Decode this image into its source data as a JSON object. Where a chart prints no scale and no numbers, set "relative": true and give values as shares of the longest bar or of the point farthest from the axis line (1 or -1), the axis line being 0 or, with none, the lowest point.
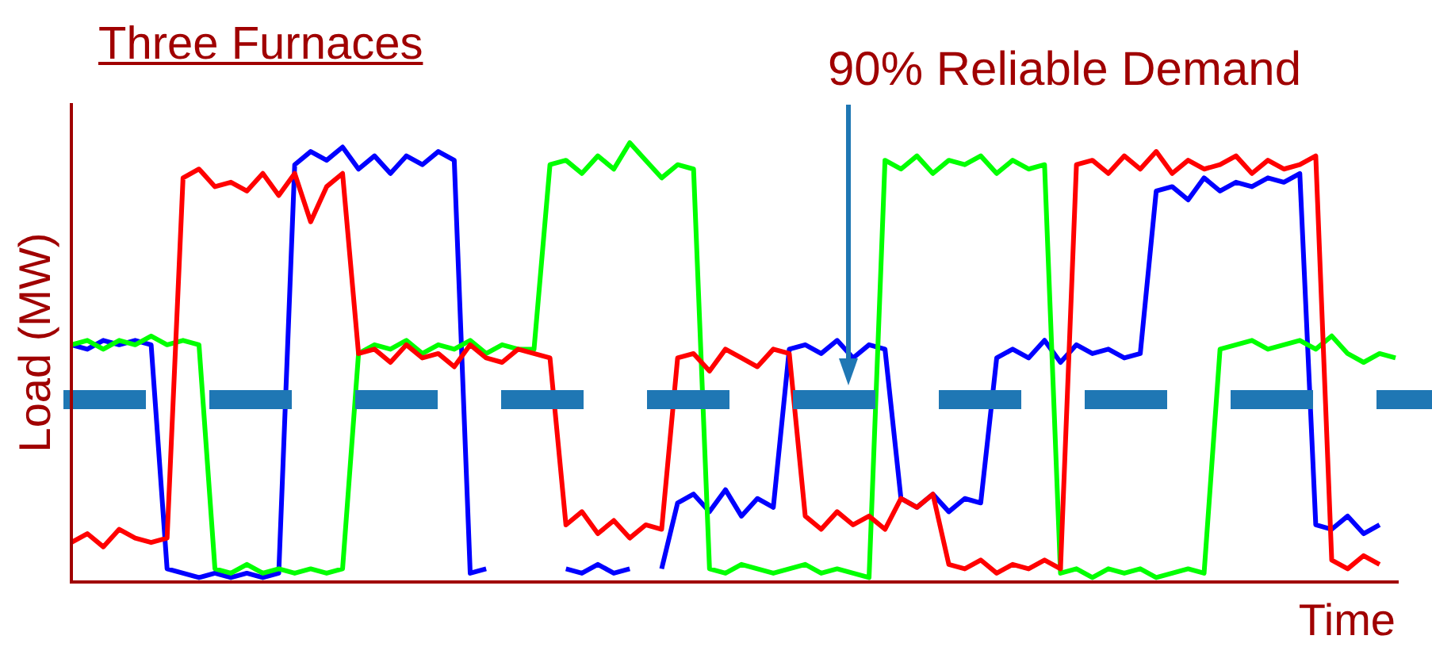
{
  "chart_data": {
    "type": "line",
    "title": "Three Furnaces",
    "xlabel": "Time",
    "ylabel": "Load (MW)",
    "relative": true,
    "categories": [
      null,
      null,
      null,
      null,
      null,
      null,
      null,
      null,
      null,
      null,
      null,
      null,
      null,
      null,
      null,
      null,
      null,
      null,
      null,
      null,
      null,
      null,
      null,
      null,
      null,
      null,
      null,
      null,
      null,
      null,
      null,
      null,
      null,
      null,
      null,
      null,
      null,
      null,
      null,
      null,
      null,
      null,
      null,
      null,
      null,
      null,
      null,
      null,
      null,
      null,
      null,
      null,
      null,
      null,
      null,
      null,
      null,
      null,
      null,
      null,
      null,
      null,
      null,
      null,
      null,
      null,
      null,
      null,
      null,
      null,
      null,
      null,
      null,
      null,
      null,
      null,
      null,
      null,
      null,
      null,
      null,
      null,
      null,
      null
    ],
    "series": [
      {
        "color": "#ff0000",
        "values": [
          0.09,
          0.11,
          0.08,
          0.12,
          0.1,
          0.09,
          0.1,
          0.92,
          0.94,
          0.9,
          0.91,
          0.89,
          0.93,
          0.88,
          0.93,
          0.82,
          0.9,
          0.93,
          0.52,
          0.53,
          0.5,
          0.54,
          0.51,
          0.52,
          0.49,
          0.54,
          0.51,
          0.5,
          0.53,
          0.52,
          0.51,
          0.13,
          0.16,
          0.11,
          0.14,
          0.1,
          0.13,
          0.12,
          0.51,
          0.52,
          0.48,
          0.53,
          0.51,
          0.49,
          0.53,
          0.52,
          0.15,
          0.12,
          0.16,
          0.13,
          0.15,
          0.12,
          0.19,
          0.17,
          0.2,
          0.04,
          0.03,
          0.05,
          0.02,
          0.04,
          0.03,
          0.05,
          0.03,
          0.95,
          0.96,
          0.93,
          0.97,
          0.94,
          0.98,
          0.93,
          0.96,
          0.94,
          0.95,
          0.97,
          0.93,
          0.96,
          0.94,
          0.95,
          0.97,
          0.05,
          0.03,
          0.06,
          0.04,
          null
        ]
      },
      {
        "color": "#00ff00",
        "values": [
          0.54,
          0.55,
          0.53,
          0.55,
          0.54,
          0.56,
          0.54,
          0.55,
          0.54,
          0.03,
          0.02,
          0.04,
          0.02,
          0.03,
          0.02,
          0.03,
          0.02,
          0.03,
          0.52,
          0.54,
          0.53,
          0.55,
          0.52,
          0.54,
          0.53,
          0.55,
          0.52,
          0.54,
          0.53,
          0.53,
          0.95,
          0.96,
          0.93,
          0.97,
          0.94,
          1.0,
          0.96,
          0.92,
          0.95,
          0.94,
          0.03,
          0.02,
          0.04,
          0.03,
          0.02,
          0.03,
          0.04,
          0.02,
          0.03,
          0.02,
          0.01,
          0.96,
          0.94,
          0.97,
          0.93,
          0.96,
          0.95,
          0.97,
          0.93,
          0.96,
          0.94,
          0.95,
          0.02,
          0.03,
          0.01,
          0.03,
          0.02,
          0.03,
          0.01,
          0.02,
          0.03,
          0.02,
          0.53,
          0.54,
          0.55,
          0.53,
          0.54,
          0.55,
          0.53,
          0.56,
          0.52,
          0.5,
          0.52,
          0.51
        ]
      },
      {
        "color": "#0000ff",
        "values": [
          0.54,
          0.53,
          0.55,
          0.54,
          0.55,
          0.54,
          0.03,
          0.02,
          0.01,
          0.02,
          0.01,
          0.02,
          0.01,
          0.02,
          0.95,
          0.98,
          0.96,
          0.99,
          0.94,
          0.97,
          0.93,
          0.97,
          0.95,
          0.98,
          0.96,
          0.02,
          0.03,
          null,
          null,
          null,
          null,
          0.03,
          0.02,
          0.04,
          0.02,
          0.03,
          null,
          0.03,
          0.18,
          0.2,
          0.16,
          0.21,
          0.15,
          0.19,
          0.17,
          0.53,
          0.54,
          0.52,
          0.55,
          0.51,
          0.54,
          0.53,
          0.19,
          0.17,
          0.2,
          0.16,
          0.19,
          0.18,
          0.51,
          0.53,
          0.51,
          0.55,
          0.5,
          0.54,
          0.52,
          0.53,
          0.51,
          0.52,
          0.89,
          0.9,
          0.87,
          0.92,
          0.89,
          0.91,
          0.9,
          0.92,
          0.91,
          0.93,
          0.13,
          0.12,
          0.15,
          0.11,
          0.13,
          null
        ]
      }
    ],
    "ref_lines": [
      {
        "axis": "y",
        "value": 0.415,
        "color": "#1f77b4",
        "line_style": "dashed"
      }
    ],
    "annotations": [
      "90% Reliable Demand"
    ],
    "marker": "none",
    "line_style": "solid",
    "legend": false
  }
}
